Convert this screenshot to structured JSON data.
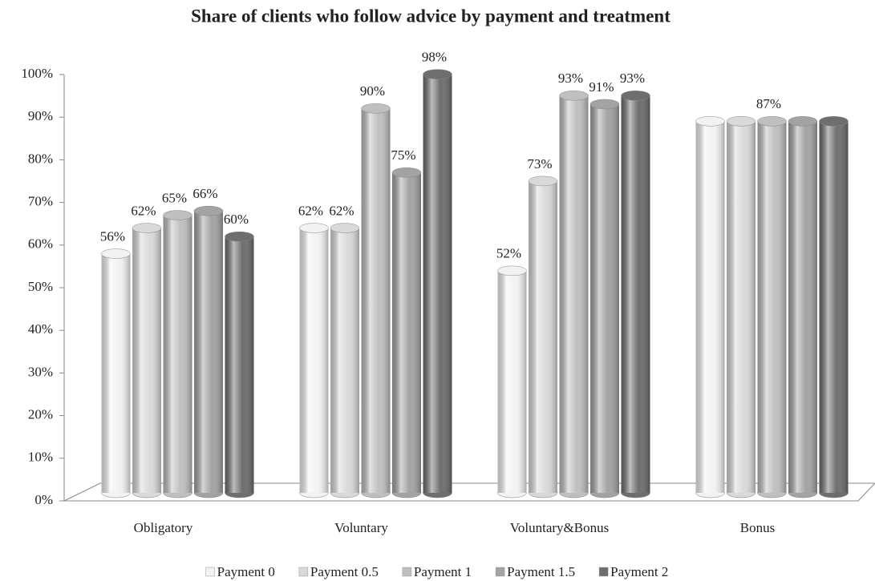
{
  "chart_data": {
    "type": "bar",
    "title": "Share of clients  who follow advice  by payment and treatment",
    "categories": [
      "Obligatory",
      "Voluntary",
      "Voluntary&Bonus",
      "Bonus"
    ],
    "series": [
      {
        "name": "Payment 0",
        "color": "#f2f2f2",
        "values": [
          56,
          62,
          52,
          87
        ],
        "value_labels": [
          "56%",
          "62%",
          "52%",
          null
        ]
      },
      {
        "name": "Payment 0.5",
        "color": "#d9d9d9",
        "values": [
          62,
          62,
          73,
          87
        ],
        "value_labels": [
          "62%",
          "62%",
          "73%",
          null
        ]
      },
      {
        "name": "Payment 1",
        "color": "#bfbfbf",
        "values": [
          65,
          90,
          93,
          87
        ],
        "value_labels": [
          "65%",
          "90%",
          "93%",
          "87%"
        ]
      },
      {
        "name": "Payment 1.5",
        "color": "#a3a3a3",
        "values": [
          66,
          75,
          91,
          87
        ],
        "value_labels": [
          "66%",
          "75%",
          "91%",
          null
        ]
      },
      {
        "name": "Payment 2",
        "color": "#6e6e6e",
        "values": [
          60,
          98,
          93,
          87
        ],
        "value_labels": [
          "60%",
          "98%",
          "93%",
          null
        ]
      }
    ],
    "ylim": [
      0,
      100
    ],
    "yticks": [
      {
        "value": 0,
        "label": "0%"
      },
      {
        "value": 10,
        "label": "10%"
      },
      {
        "value": 20,
        "label": "20%"
      },
      {
        "value": 30,
        "label": "30%"
      },
      {
        "value": 40,
        "label": "40%"
      },
      {
        "value": 50,
        "label": "50%"
      },
      {
        "value": 60,
        "label": "60%"
      },
      {
        "value": 70,
        "label": "70%"
      },
      {
        "value": 80,
        "label": "80%"
      },
      {
        "value": 90,
        "label": "90%"
      },
      {
        "value": 100,
        "label": "100%"
      }
    ],
    "legend": "bottom"
  }
}
